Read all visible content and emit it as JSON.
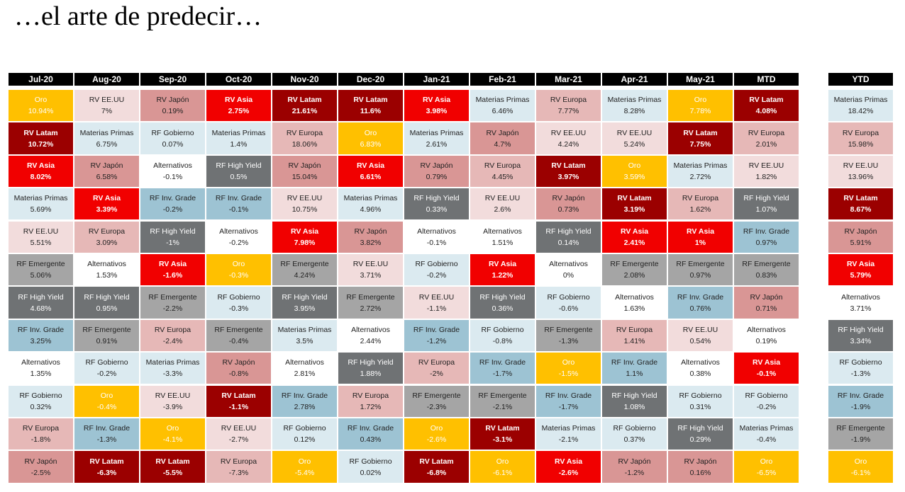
{
  "title": "…el arte de predecir…",
  "colors": {
    "Oro": {
      "bg": "#ffc000",
      "fg": "#ffffff",
      "bold": false
    },
    "RV Latam": {
      "bg": "#9b0000",
      "fg": "#ffffff",
      "bold": true
    },
    "RV Asia": {
      "bg": "#f10000",
      "fg": "#ffffff",
      "bold": true
    },
    "RV EE.UU": {
      "bg": "#f2dcdc",
      "fg": "#222222",
      "bold": false
    },
    "RV Japón": {
      "bg": "#d99695",
      "fg": "#222222",
      "bold": false
    },
    "RV Europa": {
      "bg": "#e6b8b7",
      "fg": "#222222",
      "bold": false
    },
    "Materias Primas": {
      "bg": "#dbeaf0",
      "fg": "#222222",
      "bold": false
    },
    "RF Gobierno": {
      "bg": "#dbeaf0",
      "fg": "#222222",
      "bold": false
    },
    "Alternativos": {
      "bg": "#ffffff",
      "fg": "#222222",
      "bold": false
    },
    "RF High Yield": {
      "bg": "#6f7274",
      "fg": "#ffffff",
      "bold": false
    },
    "RF Inv. Grade": {
      "bg": "#9dc3d3",
      "fg": "#222222",
      "bold": false
    },
    "RF Emergente": {
      "bg": "#a5a5a5",
      "fg": "#222222",
      "bold": false
    }
  },
  "chart_data": {
    "type": "table",
    "columns": [
      {
        "header": "Jul-20",
        "cells": [
          {
            "asset": "Oro",
            "value": "10.94%"
          },
          {
            "asset": "RV Latam",
            "value": "10.72%"
          },
          {
            "asset": "RV Asia",
            "value": "8.02%"
          },
          {
            "asset": "Materias Primas",
            "value": "5.69%"
          },
          {
            "asset": "RV EE.UU",
            "value": "5.51%"
          },
          {
            "asset": "RF Emergente",
            "value": "5.06%"
          },
          {
            "asset": "RF High Yield",
            "value": "4.68%"
          },
          {
            "asset": "RF Inv. Grade",
            "value": "3.25%"
          },
          {
            "asset": "Alternativos",
            "value": "1.35%"
          },
          {
            "asset": "RF Gobierno",
            "value": "0.32%"
          },
          {
            "asset": "RV Europa",
            "value": "-1.8%"
          },
          {
            "asset": "RV Japón",
            "value": "-2.5%"
          }
        ]
      },
      {
        "header": "Aug-20",
        "cells": [
          {
            "asset": "RV EE.UU",
            "value": "7%"
          },
          {
            "asset": "Materias Primas",
            "value": "6.75%"
          },
          {
            "asset": "RV Japón",
            "value": "6.58%"
          },
          {
            "asset": "RV Asia",
            "value": "3.39%"
          },
          {
            "asset": "RV Europa",
            "value": "3.09%"
          },
          {
            "asset": "Alternativos",
            "value": "1.53%"
          },
          {
            "asset": "RF High Yield",
            "value": "0.95%"
          },
          {
            "asset": "RF Emergente",
            "value": "0.91%"
          },
          {
            "asset": "RF Gobierno",
            "value": "-0.2%"
          },
          {
            "asset": "Oro",
            "value": "-0.4%"
          },
          {
            "asset": "RF Inv. Grade",
            "value": "-1.3%"
          },
          {
            "asset": "RV Latam",
            "value": "-6.3%"
          }
        ]
      },
      {
        "header": "Sep-20",
        "cells": [
          {
            "asset": "RV Japón",
            "value": "0.19%"
          },
          {
            "asset": "RF Gobierno",
            "value": "0.07%"
          },
          {
            "asset": "Alternativos",
            "value": "-0.1%"
          },
          {
            "asset": "RF Inv. Grade",
            "value": "-0.2%"
          },
          {
            "asset": "RF High Yield",
            "value": "-1%"
          },
          {
            "asset": "RV Asia",
            "value": "-1.6%"
          },
          {
            "asset": "RF Emergente",
            "value": "-2.2%"
          },
          {
            "asset": "RV Europa",
            "value": "-2.4%"
          },
          {
            "asset": "Materias Primas",
            "value": "-3.3%"
          },
          {
            "asset": "RV EE.UU",
            "value": "-3.9%"
          },
          {
            "asset": "Oro",
            "value": "-4.1%"
          },
          {
            "asset": "RV Latam",
            "value": "-5.5%"
          }
        ]
      },
      {
        "header": "Oct-20",
        "cells": [
          {
            "asset": "RV Asia",
            "value": "2.75%"
          },
          {
            "asset": "Materias Primas",
            "value": "1.4%"
          },
          {
            "asset": "RF High Yield",
            "value": "0.5%"
          },
          {
            "asset": "RF Inv. Grade",
            "value": "-0.1%"
          },
          {
            "asset": "Alternativos",
            "value": "-0.2%"
          },
          {
            "asset": "Oro",
            "value": "-0.3%"
          },
          {
            "asset": "RF Gobierno",
            "value": "-0.3%"
          },
          {
            "asset": "RF Emergente",
            "value": "-0.4%"
          },
          {
            "asset": "RV Japón",
            "value": "-0.8%"
          },
          {
            "asset": "RV Latam",
            "value": "-1.1%"
          },
          {
            "asset": "RV EE.UU",
            "value": "-2.7%"
          },
          {
            "asset": "RV Europa",
            "value": "-7.3%"
          }
        ]
      },
      {
        "header": "Nov-20",
        "cells": [
          {
            "asset": "RV Latam",
            "value": "21.61%"
          },
          {
            "asset": "RV Europa",
            "value": "18.06%"
          },
          {
            "asset": "RV Japón",
            "value": "15.04%"
          },
          {
            "asset": "RV EE.UU",
            "value": "10.75%"
          },
          {
            "asset": "RV Asia",
            "value": "7.98%"
          },
          {
            "asset": "RF Emergente",
            "value": "4.24%"
          },
          {
            "asset": "RF High Yield",
            "value": "3.95%"
          },
          {
            "asset": "Materias Primas",
            "value": "3.5%"
          },
          {
            "asset": "Alternativos",
            "value": "2.81%"
          },
          {
            "asset": "RF Inv. Grade",
            "value": "2.78%"
          },
          {
            "asset": "RF Gobierno",
            "value": "0.12%"
          },
          {
            "asset": "Oro",
            "value": "-5.4%"
          }
        ]
      },
      {
        "header": "Dec-20",
        "cells": [
          {
            "asset": "RV Latam",
            "value": "11.6%"
          },
          {
            "asset": "Oro",
            "value": "6.83%"
          },
          {
            "asset": "RV Asia",
            "value": "6.61%"
          },
          {
            "asset": "Materias Primas",
            "value": "4.96%"
          },
          {
            "asset": "RV Japón",
            "value": "3.82%"
          },
          {
            "asset": "RV EE.UU",
            "value": "3.71%"
          },
          {
            "asset": "RF Emergente",
            "value": "2.72%"
          },
          {
            "asset": "Alternativos",
            "value": "2.44%"
          },
          {
            "asset": "RF High Yield",
            "value": "1.88%"
          },
          {
            "asset": "RV Europa",
            "value": "1.72%"
          },
          {
            "asset": "RF Inv. Grade",
            "value": "0.43%"
          },
          {
            "asset": "RF Gobierno",
            "value": "0.02%"
          }
        ]
      },
      {
        "header": "Jan-21",
        "cells": [
          {
            "asset": "RV Asia",
            "value": "3.98%"
          },
          {
            "asset": "Materias Primas",
            "value": "2.61%"
          },
          {
            "asset": "RV Japón",
            "value": "0.79%"
          },
          {
            "asset": "RF High Yield",
            "value": "0.33%"
          },
          {
            "asset": "Alternativos",
            "value": "-0.1%"
          },
          {
            "asset": "RF Gobierno",
            "value": "-0.2%"
          },
          {
            "asset": "RV EE.UU",
            "value": "-1.1%"
          },
          {
            "asset": "RF Inv. Grade",
            "value": "-1.2%"
          },
          {
            "asset": "RV Europa",
            "value": "-2%"
          },
          {
            "asset": "RF Emergente",
            "value": "-2.3%"
          },
          {
            "asset": "Oro",
            "value": "-2.6%"
          },
          {
            "asset": "RV Latam",
            "value": "-6.8%"
          }
        ]
      },
      {
        "header": "Feb-21",
        "cells": [
          {
            "asset": "Materias Primas",
            "value": "6.46%"
          },
          {
            "asset": "RV Japón",
            "value": "4.7%"
          },
          {
            "asset": "RV Europa",
            "value": "4.45%"
          },
          {
            "asset": "RV EE.UU",
            "value": "2.6%"
          },
          {
            "asset": "Alternativos",
            "value": "1.51%"
          },
          {
            "asset": "RV Asia",
            "value": "1.22%"
          },
          {
            "asset": "RF High Yield",
            "value": "0.36%"
          },
          {
            "asset": "RF Gobierno",
            "value": "-0.8%"
          },
          {
            "asset": "RF Inv. Grade",
            "value": "-1.7%"
          },
          {
            "asset": "RF Emergente",
            "value": "-2.1%"
          },
          {
            "asset": "RV Latam",
            "value": "-3.1%"
          },
          {
            "asset": "Oro",
            "value": "-6.1%"
          }
        ]
      },
      {
        "header": "Mar-21",
        "cells": [
          {
            "asset": "RV Europa",
            "value": "7.77%"
          },
          {
            "asset": "RV EE.UU",
            "value": "4.24%"
          },
          {
            "asset": "RV Latam",
            "value": "3.97%"
          },
          {
            "asset": "RV Japón",
            "value": "0.73%"
          },
          {
            "asset": "RF High Yield",
            "value": "0.14%"
          },
          {
            "asset": "Alternativos",
            "value": "0%"
          },
          {
            "asset": "RF Gobierno",
            "value": "-0.6%"
          },
          {
            "asset": "RF Emergente",
            "value": "-1.3%"
          },
          {
            "asset": "Oro",
            "value": "-1.5%"
          },
          {
            "asset": "RF Inv. Grade",
            "value": "-1.7%"
          },
          {
            "asset": "Materias Primas",
            "value": "-2.1%"
          },
          {
            "asset": "RV Asia",
            "value": "-2.6%"
          }
        ]
      },
      {
        "header": "Apr-21",
        "cells": [
          {
            "asset": "Materias Primas",
            "value": "8.28%"
          },
          {
            "asset": "RV EE.UU",
            "value": "5.24%"
          },
          {
            "asset": "Oro",
            "value": "3.59%"
          },
          {
            "asset": "RV Latam",
            "value": "3.19%"
          },
          {
            "asset": "RV Asia",
            "value": "2.41%"
          },
          {
            "asset": "RF Emergente",
            "value": "2.08%"
          },
          {
            "asset": "Alternativos",
            "value": "1.63%"
          },
          {
            "asset": "RV Europa",
            "value": "1.41%"
          },
          {
            "asset": "RF Inv. Grade",
            "value": "1.1%"
          },
          {
            "asset": "RF High Yield",
            "value": "1.08%"
          },
          {
            "asset": "RF Gobierno",
            "value": "0.37%"
          },
          {
            "asset": "RV Japón",
            "value": "-1.2%"
          }
        ]
      },
      {
        "header": "May-21",
        "cells": [
          {
            "asset": "Oro",
            "value": "7.78%"
          },
          {
            "asset": "RV Latam",
            "value": "7.75%"
          },
          {
            "asset": "Materias Primas",
            "value": "2.72%"
          },
          {
            "asset": "RV Europa",
            "value": "1.62%"
          },
          {
            "asset": "RV Asia",
            "value": "1%"
          },
          {
            "asset": "RF Emergente",
            "value": "0.97%"
          },
          {
            "asset": "RF Inv. Grade",
            "value": "0.76%"
          },
          {
            "asset": "RV EE.UU",
            "value": "0.54%"
          },
          {
            "asset": "Alternativos",
            "value": "0.38%"
          },
          {
            "asset": "RF Gobierno",
            "value": "0.31%"
          },
          {
            "asset": "RF High Yield",
            "value": "0.29%"
          },
          {
            "asset": "RV Japón",
            "value": "0.16%"
          }
        ]
      },
      {
        "header": "MTD",
        "cells": [
          {
            "asset": "RV Latam",
            "value": "4.08%"
          },
          {
            "asset": "RV Europa",
            "value": "2.01%"
          },
          {
            "asset": "RV EE.UU",
            "value": "1.82%"
          },
          {
            "asset": "RF High Yield",
            "value": "1.07%"
          },
          {
            "asset": "RF Inv. Grade",
            "value": "0.97%"
          },
          {
            "asset": "RF Emergente",
            "value": "0.83%"
          },
          {
            "asset": "RV Japón",
            "value": "0.71%"
          },
          {
            "asset": "Alternativos",
            "value": "0.19%"
          },
          {
            "asset": "RV Asia",
            "value": "-0.1%"
          },
          {
            "asset": "RF Gobierno",
            "value": "-0.2%"
          },
          {
            "asset": "Materias Primas",
            "value": "-0.4%"
          },
          {
            "asset": "Oro",
            "value": "-6.5%"
          }
        ]
      },
      {
        "header": "YTD",
        "cells": [
          {
            "asset": "Materias Primas",
            "value": "18.42%"
          },
          {
            "asset": "RV Europa",
            "value": "15.98%"
          },
          {
            "asset": "RV EE.UU",
            "value": "13.96%"
          },
          {
            "asset": "RV Latam",
            "value": "8.67%"
          },
          {
            "asset": "RV Japón",
            "value": "5.91%"
          },
          {
            "asset": "RV Asia",
            "value": "5.79%"
          },
          {
            "asset": "Alternativos",
            "value": "3.71%"
          },
          {
            "asset": "RF High Yield",
            "value": "3.34%"
          },
          {
            "asset": "RF Gobierno",
            "value": "-1.3%"
          },
          {
            "asset": "RF Inv. Grade",
            "value": "-1.9%"
          },
          {
            "asset": "RF Emergente",
            "value": "-1.9%"
          },
          {
            "asset": "Oro",
            "value": "-6.1%"
          }
        ]
      }
    ]
  }
}
